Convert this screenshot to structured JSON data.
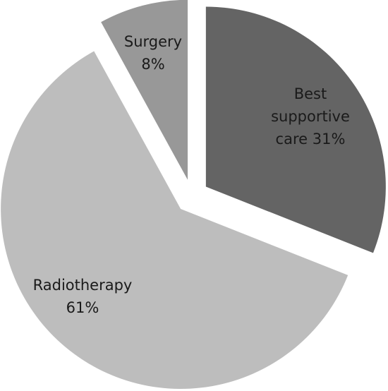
{
  "chart_data": {
    "type": "pie",
    "categories": [
      "Best supportive care",
      "Radiotherapy",
      "Surgery"
    ],
    "values": [
      31,
      61,
      8
    ],
    "value_labels": [
      "31%",
      "61%",
      "8%"
    ],
    "colors": [
      "#646464",
      "#bdbdbd",
      "#989898"
    ]
  }
}
